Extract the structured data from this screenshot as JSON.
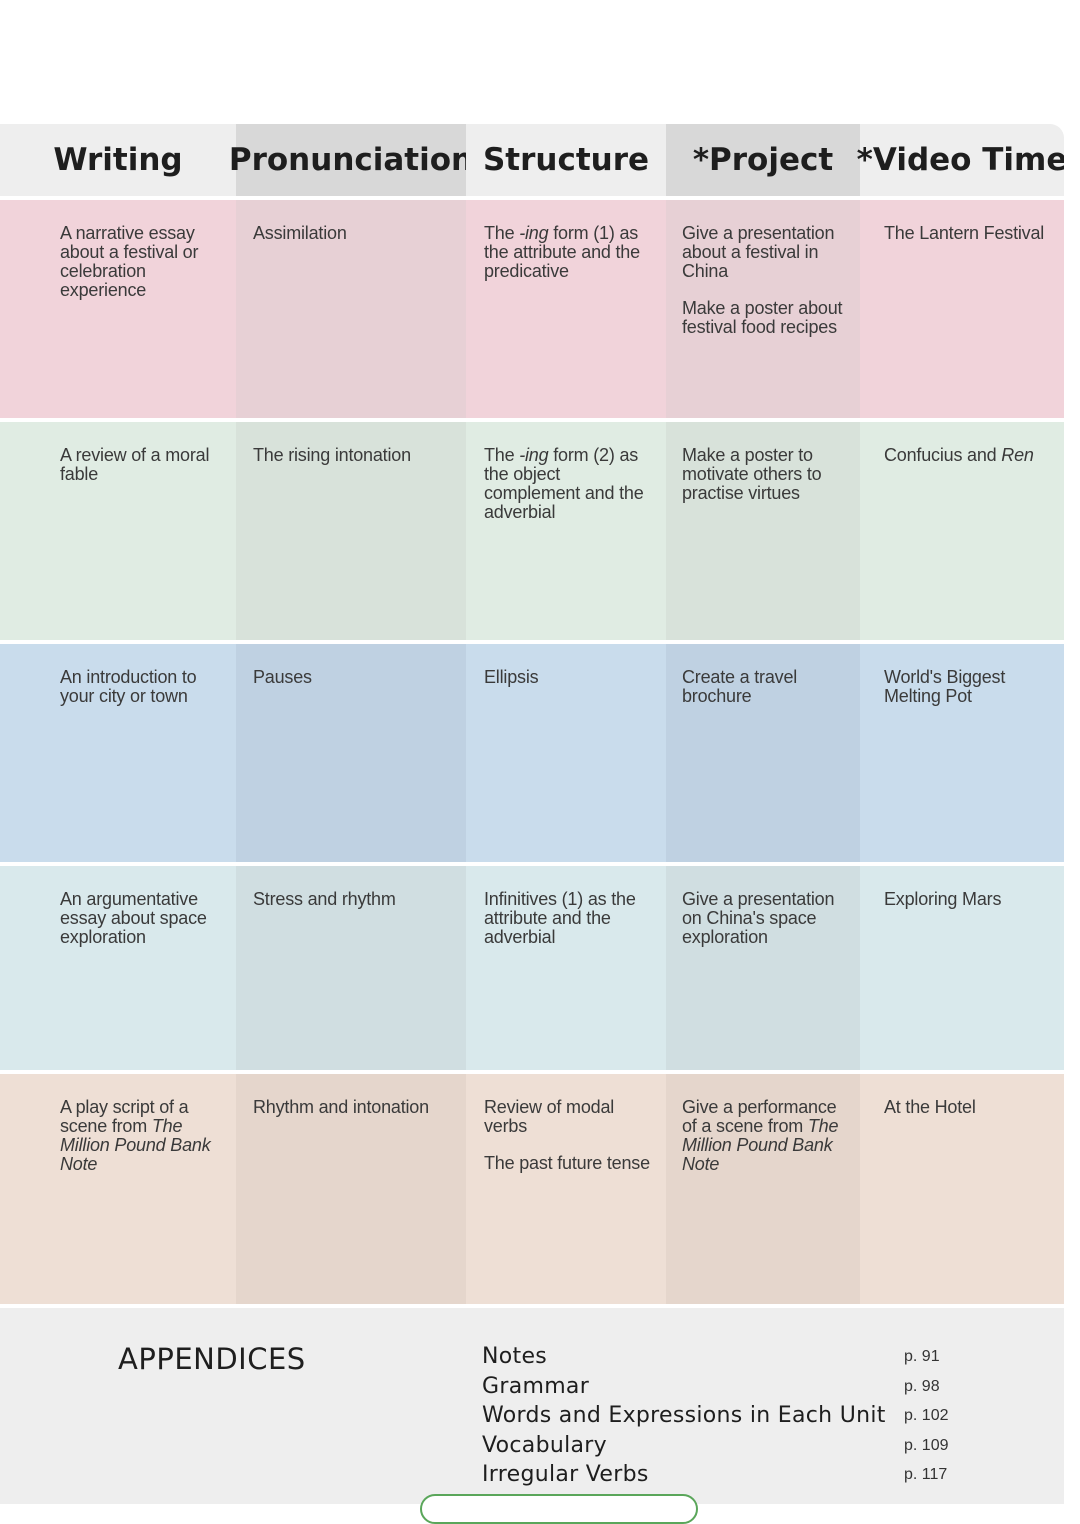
{
  "headers": [
    "Writing",
    "Pronunciation",
    "Structure",
    "*Project",
    "*Video Time"
  ],
  "colors": {
    "row_pink": [
      "#f1d3da",
      "#e7d0d5"
    ],
    "row_green": [
      "#e0ece3",
      "#d8e2da"
    ],
    "row_blue": [
      "#c9dcec",
      "#bfd1e2"
    ],
    "row_teal": [
      "#d9e9ec",
      "#d0dee1"
    ],
    "row_peach": [
      "#eedfd5",
      "#e5d6cc"
    ],
    "appendix_bg": "#eeeeee"
  },
  "rows": [
    {
      "writing": "A narrative essay about a festival or celebration experience",
      "pronunciation": "Assimilation",
      "structure": [
        "The -ing form (1) as the attribute and the predicative"
      ],
      "project": [
        "Give a presentation about a festival in China",
        "Make a poster about festival food recipes"
      ],
      "video": "The Lantern Festival"
    },
    {
      "writing": "A review of a moral fable",
      "pronunciation": "The rising intonation",
      "structure": [
        "The -ing form (2) as the object complement and the adverbial"
      ],
      "project": [
        "Make a poster to motivate others to practise virtues"
      ],
      "video": "Confucius and Ren"
    },
    {
      "writing": "An introduction to your city or town",
      "pronunciation": "Pauses",
      "structure": [
        "Ellipsis"
      ],
      "project": [
        "Create a travel brochure"
      ],
      "video": "World's Biggest Melting Pot"
    },
    {
      "writing": "An argumentative essay about space exploration",
      "pronunciation": "Stress and rhythm",
      "structure": [
        "Infinitives (1) as the attribute and the adverbial"
      ],
      "project": [
        "Give a presentation on China's space exploration"
      ],
      "video": "Exploring Mars"
    },
    {
      "writing": "A play script of a scene from The Million Pound Bank Note",
      "pronunciation": "Rhythm and intonation",
      "structure": [
        "Review of modal verbs",
        "The past future tense"
      ],
      "project": [
        "Give a performance of a scene from The Million Pound Bank Note"
      ],
      "video": "At the Hotel"
    }
  ],
  "appendices": {
    "title": "APPENDICES",
    "items": [
      {
        "name": "Notes",
        "page": "p. 91"
      },
      {
        "name": "Grammar",
        "page": "p. 98"
      },
      {
        "name": "Words and Expressions in Each Unit",
        "page": "p. 102"
      },
      {
        "name": "Vocabulary",
        "page": "p. 109"
      },
      {
        "name": "Irregular Verbs",
        "page": "p. 117"
      }
    ]
  }
}
